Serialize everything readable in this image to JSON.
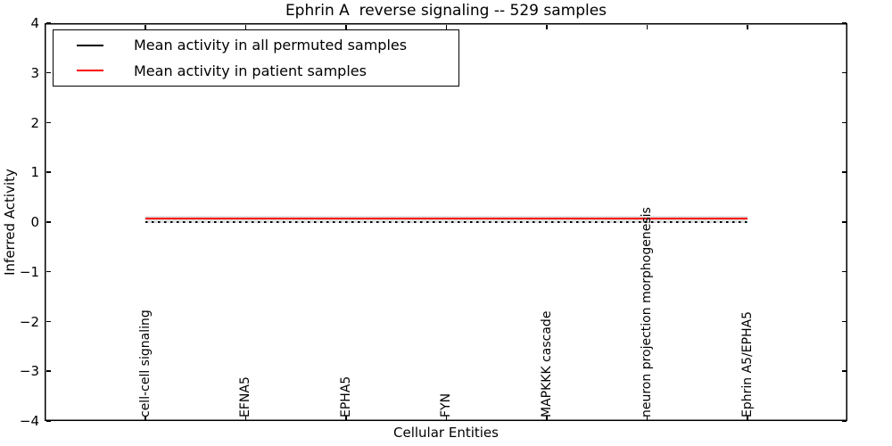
{
  "chart_data": {
    "type": "line",
    "title": "Ephrin A  reverse signaling -- 529 samples",
    "xlabel": "Cellular Entities",
    "ylabel": "Inferred Activity",
    "ylim": [
      -4,
      4
    ],
    "yticks": [
      4,
      3,
      2,
      1,
      0,
      -1,
      -2,
      -3,
      -4
    ],
    "categories": [
      "cell-cell signaling",
      "EFNA5",
      "EPHA5",
      "FYN",
      "MAPKKK cascade",
      "neuron projection morphogenesis",
      "Ephrin A5/EPHA5"
    ],
    "series": [
      {
        "name": "Mean activity in all permuted samples",
        "color": "#000000",
        "style": "dotted",
        "values": [
          0.0,
          0.0,
          0.0,
          0.0,
          0.0,
          0.0,
          0.0
        ]
      },
      {
        "name": "Mean activity in patient samples",
        "color": "#ff0000",
        "style": "solid",
        "values": [
          0.05,
          0.05,
          0.05,
          0.05,
          0.05,
          0.05,
          0.05
        ]
      }
    ],
    "band": {
      "color": "#e0e0e0",
      "upper": 0.12,
      "lower": -0.02
    },
    "legend_position": "upper left",
    "grid": false,
    "frame_color": "#000000",
    "background_color": "#ffffff"
  }
}
